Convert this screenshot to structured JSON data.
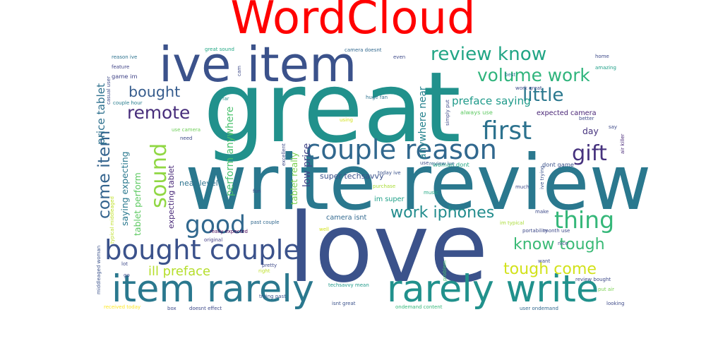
{
  "title": "WordCloud",
  "title_color": "#ff0000",
  "chart_data": {
    "type": "wordcloud",
    "title": "WordCloud",
    "background": "#ffffff",
    "colormap": "viridis",
    "words": [
      {
        "text": "great",
        "weight": 1.0,
        "color": "#21918c"
      },
      {
        "text": "love",
        "weight": 0.98,
        "color": "#3b528b"
      },
      {
        "text": "write review",
        "weight": 0.78,
        "color": "#2a788e"
      },
      {
        "text": "ive item",
        "weight": 0.5,
        "color": "#3b528b"
      },
      {
        "text": "item rarely",
        "weight": 0.38,
        "color": "#2a788e"
      },
      {
        "text": "rarely write",
        "weight": 0.38,
        "color": "#21918c"
      },
      {
        "text": "couple reason",
        "weight": 0.28,
        "color": "#31688e"
      },
      {
        "text": "bought couple",
        "weight": 0.28,
        "color": "#3b528b"
      },
      {
        "text": "first",
        "weight": 0.26,
        "color": "#2c728e"
      },
      {
        "text": "good",
        "weight": 0.25,
        "color": "#31688e"
      },
      {
        "text": "thing",
        "weight": 0.24,
        "color": "#35b779"
      },
      {
        "text": "sound",
        "weight": 0.22,
        "color": "#90d743"
      },
      {
        "text": "gift",
        "weight": 0.22,
        "color": "#46327e"
      },
      {
        "text": "review know",
        "weight": 0.19,
        "color": "#21a585"
      },
      {
        "text": "volume work",
        "weight": 0.18,
        "color": "#2fb47c"
      },
      {
        "text": "little",
        "weight": 0.19,
        "color": "#2a788e"
      },
      {
        "text": "remote",
        "weight": 0.18,
        "color": "#472d7b"
      },
      {
        "text": "come item",
        "weight": 0.17,
        "color": "#33638d"
      },
      {
        "text": "work iphones",
        "weight": 0.16,
        "color": "#228c8d"
      },
      {
        "text": "know tough",
        "weight": 0.16,
        "color": "#3aba76"
      },
      {
        "text": "tough come",
        "weight": 0.16,
        "color": "#d2e21b"
      },
      {
        "text": "bought",
        "weight": 0.15,
        "color": "#365c8d"
      },
      {
        "text": "ill preface",
        "weight": 0.13,
        "color": "#b5de2b"
      },
      {
        "text": "price tablet",
        "weight": 0.11,
        "color": "#2d708e"
      },
      {
        "text": "preface saying",
        "weight": 0.11,
        "color": "#1f9a8a"
      },
      {
        "text": "low price",
        "weight": 0.1,
        "color": "#414487"
      },
      {
        "text": "perform anywhere",
        "weight": 0.1,
        "color": "#4ac16d"
      },
      {
        "text": "anywhere near",
        "weight": 0.1,
        "color": "#26828e"
      },
      {
        "text": "tablet really",
        "weight": 0.09,
        "color": "#7ad151"
      },
      {
        "text": "saying expecting",
        "weight": 0.09,
        "color": "#2a788e"
      },
      {
        "text": "tablet perform",
        "weight": 0.09,
        "color": "#5ec962"
      },
      {
        "text": "expecting tablet",
        "weight": 0.08,
        "color": "#482878"
      },
      {
        "text": "day",
        "weight": 0.09,
        "color": "#46337e"
      },
      {
        "text": "near level",
        "weight": 0.08,
        "color": "#2c728e"
      },
      {
        "text": "super techsavvy",
        "weight": 0.08,
        "color": "#3b528b"
      },
      {
        "text": "im super",
        "weight": 0.07,
        "color": "#1fa088"
      },
      {
        "text": "camera isnt",
        "weight": 0.07,
        "color": "#31688e"
      },
      {
        "text": "expected camera",
        "weight": 0.07,
        "color": "#482475"
      },
      {
        "text": "work great",
        "weight": 0.05,
        "color": "#3e4a89"
      },
      {
        "text": "always use",
        "weight": 0.06,
        "color": "#5ec962"
      },
      {
        "text": "woman dont",
        "weight": 0.06,
        "color": "#22a884"
      },
      {
        "text": "dont game",
        "weight": 0.06,
        "color": "#3b528b"
      },
      {
        "text": "use camera",
        "weight": 0.05,
        "color": "#6ece58"
      },
      {
        "text": "game im",
        "weight": 0.06,
        "color": "#414487"
      },
      {
        "text": "couple hour",
        "weight": 0.05,
        "color": "#287c8e"
      },
      {
        "text": "reason ive",
        "weight": 0.05,
        "color": "#2c728e"
      },
      {
        "text": "feature",
        "weight": 0.05,
        "color": "#414487"
      },
      {
        "text": "casual user",
        "weight": 0.05,
        "color": "#3e4a89"
      },
      {
        "text": "great sound",
        "weight": 0.05,
        "color": "#22a884"
      },
      {
        "text": "camera doesnt",
        "weight": 0.05,
        "color": "#31688e"
      },
      {
        "text": "even",
        "weight": 0.05,
        "color": "#3e4a89"
      },
      {
        "text": "huge fan",
        "weight": 0.05,
        "color": "#2c728e"
      },
      {
        "text": "best",
        "weight": 0.05,
        "color": "#2c728e"
      },
      {
        "text": "home",
        "weight": 0.05,
        "color": "#3e4a89"
      },
      {
        "text": "amazing",
        "weight": 0.04,
        "color": "#1fa088"
      },
      {
        "text": "really expected",
        "weight": 0.05,
        "color": "#440154"
      },
      {
        "text": "past couple",
        "weight": 0.05,
        "color": "#31688e"
      },
      {
        "text": "original",
        "weight": 0.05,
        "color": "#433e85"
      },
      {
        "text": "portability",
        "weight": 0.05,
        "color": "#3e4a89"
      },
      {
        "text": "month use",
        "weight": 0.05,
        "color": "#3e4a89"
      },
      {
        "text": "im typical",
        "weight": 0.05,
        "color": "#a8db34"
      },
      {
        "text": "review bought",
        "weight": 0.05,
        "color": "#3e4a89"
      },
      {
        "text": "put air",
        "weight": 0.05,
        "color": "#7ad151"
      },
      {
        "text": "air killer",
        "weight": 0.04,
        "color": "#482878"
      },
      {
        "text": "ive trying",
        "weight": 0.04,
        "color": "#3b528b"
      },
      {
        "text": "review ive",
        "weight": 0.04,
        "color": "#31688e"
      },
      {
        "text": "today ive",
        "weight": 0.04,
        "color": "#3b528b"
      },
      {
        "text": "purchase",
        "weight": 0.04,
        "color": "#a8db34"
      },
      {
        "text": "music",
        "weight": 0.04,
        "color": "#22a884"
      },
      {
        "text": "much",
        "weight": 0.04,
        "color": "#3e4a89"
      },
      {
        "text": "make",
        "weight": 0.04,
        "color": "#3e4a89"
      },
      {
        "text": "nice",
        "weight": 0.04,
        "color": "#3e4a89"
      },
      {
        "text": "want",
        "weight": 0.04,
        "color": "#3e4a89"
      },
      {
        "text": "problem",
        "weight": 0.04,
        "color": "#4ac16d"
      },
      {
        "text": "looking",
        "weight": 0.04,
        "color": "#3e4a89"
      },
      {
        "text": "user ondemand",
        "weight": 0.05,
        "color": "#31688e"
      },
      {
        "text": "ondemand content",
        "weight": 0.05,
        "color": "#35b779"
      },
      {
        "text": "isnt great",
        "weight": 0.05,
        "color": "#3b528b"
      },
      {
        "text": "techsavvy mean",
        "weight": 0.04,
        "color": "#1f9a8a"
      },
      {
        "text": "trying past",
        "weight": 0.05,
        "color": "#3b528b"
      },
      {
        "text": "doesnt effect",
        "weight": 0.05,
        "color": "#3e4a89"
      },
      {
        "text": "box",
        "weight": 0.04,
        "color": "#3e4a89"
      },
      {
        "text": "received today",
        "weight": 0.04,
        "color": "#fde725"
      },
      {
        "text": "go",
        "weight": 0.04,
        "color": "#3e4a89"
      },
      {
        "text": "lot",
        "weight": 0.04,
        "color": "#3e4a89"
      },
      {
        "text": "right",
        "weight": 0.04,
        "color": "#bddf26"
      },
      {
        "text": "pretty",
        "weight": 0.04,
        "color": "#3e4a89"
      },
      {
        "text": "middleaged woman",
        "weight": 0.04,
        "color": "#3b528b"
      },
      {
        "text": "typical middleaged",
        "weight": 0.04,
        "color": "#bddf26"
      },
      {
        "text": "fun",
        "weight": 0.04,
        "color": "#3e4a89"
      },
      {
        "text": "well",
        "weight": 0.04,
        "color": "#d2e21b"
      },
      {
        "text": "excellent",
        "weight": 0.04,
        "color": "#3e4a89"
      },
      {
        "text": "using",
        "weight": 0.04,
        "color": "#d2e21b"
      },
      {
        "text": "far",
        "weight": 0.04,
        "color": "#21918c"
      },
      {
        "text": "need",
        "weight": 0.04,
        "color": "#3e4a89"
      },
      {
        "text": "say",
        "weight": 0.04,
        "color": "#3e4a89"
      },
      {
        "text": "better",
        "weight": 0.04,
        "color": "#3e4a89"
      },
      {
        "text": "simply put",
        "weight": 0.04,
        "color": "#3e4a89"
      },
      {
        "text": "cam",
        "weight": 0.04,
        "color": "#3e4a89"
      },
      {
        "text": "use",
        "weight": 0.04,
        "color": "#3e4a89"
      }
    ]
  }
}
